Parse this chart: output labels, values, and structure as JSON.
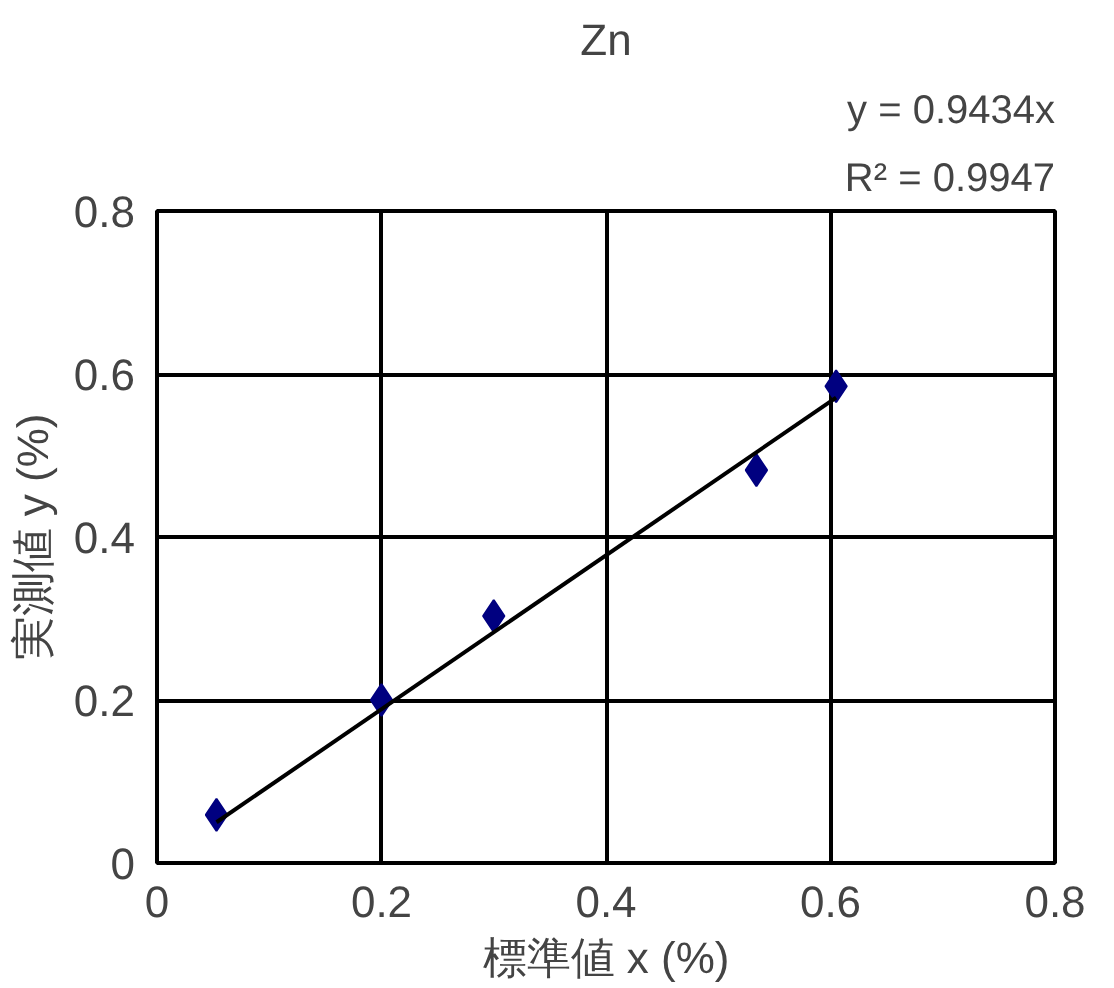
{
  "chart_data": {
    "type": "scatter",
    "title": "Zn",
    "xlabel": "標準値 x (%)",
    "ylabel": "実測値 y (%)",
    "annotations": [
      "y = 0.9434x",
      "R² = 0.9947"
    ],
    "series": [
      {
        "color": "#000080",
        "marker": "diamond",
        "x": [
          0.053,
          0.2,
          0.3,
          0.534,
          0.605
        ],
        "values": [
          0.059,
          0.2,
          0.303,
          0.482,
          0.585
        ]
      },
      {
        "type": "line",
        "color": "#000000",
        "marker": "none",
        "x": [
          0.053,
          0.605
        ],
        "values": [
          0.05,
          0.571
        ]
      }
    ],
    "xlim": [
      0,
      0.8
    ],
    "ylim": [
      0,
      0.8
    ],
    "xticks": [
      0,
      0.2,
      0.4,
      0.6,
      0.8
    ],
    "yticks": [
      0,
      0.2,
      0.4,
      0.6,
      0.8
    ],
    "grid": true
  }
}
